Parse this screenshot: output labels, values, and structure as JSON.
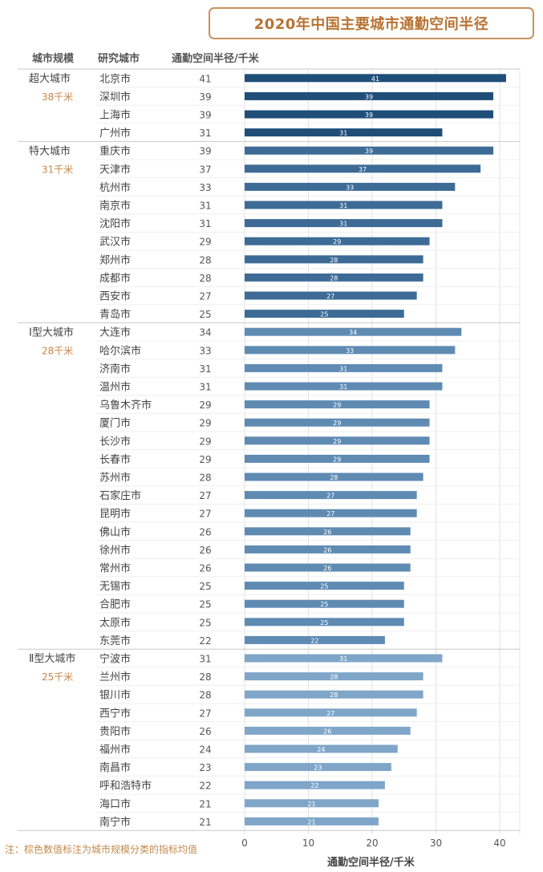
{
  "chart_data": {
    "type": "bar",
    "orientation": "horizontal",
    "title": "2020年中国主要城市通勤空间半径",
    "xlabel": "通勤空间半径/千米",
    "xlim": [
      0,
      42
    ],
    "xticks": [
      0,
      10,
      20,
      30,
      40
    ],
    "grid": true,
    "columns": [
      "城市规模",
      "研究城市",
      "通勤空间半径/千米"
    ],
    "groups": [
      {
        "name": "超大城市",
        "mean_label": "38千米",
        "color": "#1f4e79",
        "cities": [
          {
            "name": "北京市",
            "value": 41
          },
          {
            "name": "深圳市",
            "value": 39
          },
          {
            "name": "上海市",
            "value": 39
          },
          {
            "name": "广州市",
            "value": 31
          }
        ]
      },
      {
        "name": "特大城市",
        "mean_label": "31千米",
        "color": "#3d6b96",
        "cities": [
          {
            "name": "重庆市",
            "value": 39
          },
          {
            "name": "天津市",
            "value": 37
          },
          {
            "name": "杭州市",
            "value": 33
          },
          {
            "name": "南京市",
            "value": 31
          },
          {
            "name": "沈阳市",
            "value": 31
          },
          {
            "name": "武汉市",
            "value": 29
          },
          {
            "name": "郑州市",
            "value": 28
          },
          {
            "name": "成都市",
            "value": 28
          },
          {
            "name": "西安市",
            "value": 27
          },
          {
            "name": "青岛市",
            "value": 25
          }
        ]
      },
      {
        "name": "Ⅰ型大城市",
        "mean_label": "28千米",
        "color": "#5f8bb3",
        "cities": [
          {
            "name": "大连市",
            "value": 34
          },
          {
            "name": "哈尔滨市",
            "value": 33
          },
          {
            "name": "济南市",
            "value": 31
          },
          {
            "name": "温州市",
            "value": 31
          },
          {
            "name": "乌鲁木齐市",
            "value": 29
          },
          {
            "name": "厦门市",
            "value": 29
          },
          {
            "name": "长沙市",
            "value": 29
          },
          {
            "name": "长春市",
            "value": 29
          },
          {
            "name": "苏州市",
            "value": 28
          },
          {
            "name": "石家庄市",
            "value": 27
          },
          {
            "name": "昆明市",
            "value": 27
          },
          {
            "name": "佛山市",
            "value": 26
          },
          {
            "name": "徐州市",
            "value": 26
          },
          {
            "name": "常州市",
            "value": 26
          },
          {
            "name": "无锡市",
            "value": 25
          },
          {
            "name": "合肥市",
            "value": 25
          },
          {
            "name": "太原市",
            "value": 25
          },
          {
            "name": "东莞市",
            "value": 22
          }
        ]
      },
      {
        "name": "Ⅱ型大城市",
        "mean_label": "25千米",
        "color": "#7fa6c9",
        "cities": [
          {
            "name": "宁波市",
            "value": 31
          },
          {
            "name": "兰州市",
            "value": 28
          },
          {
            "name": "银川市",
            "value": 28
          },
          {
            "name": "西宁市",
            "value": 27
          },
          {
            "name": "贵阳市",
            "value": 26
          },
          {
            "name": "福州市",
            "value": 24
          },
          {
            "name": "南昌市",
            "value": 23
          },
          {
            "name": "呼和浩特市",
            "value": 22
          },
          {
            "name": "海口市",
            "value": 21
          },
          {
            "name": "南宁市",
            "value": 21
          }
        ]
      }
    ],
    "note": "注：棕色数值标注为城市规模分类的指标均值"
  }
}
